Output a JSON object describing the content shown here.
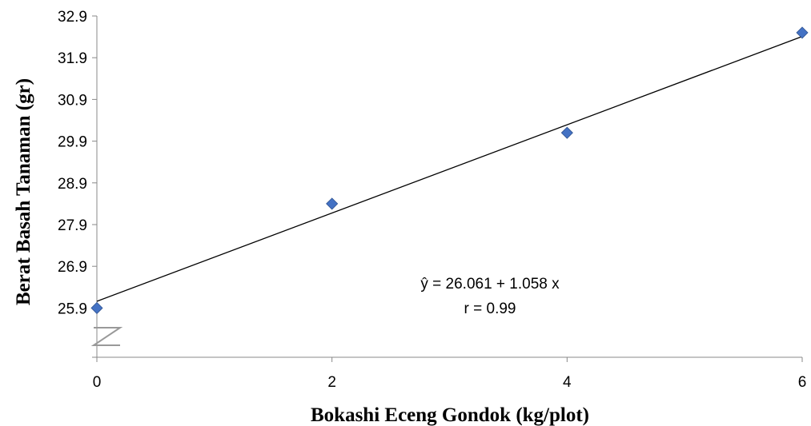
{
  "chart_data": {
    "type": "scatter",
    "xlabel": "Bokashi Eceng Gondok (kg/plot)",
    "ylabel": "Berat Basah Tanaman (gr)",
    "x_ticks": [
      "0",
      "2",
      "4",
      "6"
    ],
    "y_ticks": [
      "25.9",
      "26.9",
      "27.9",
      "28.9",
      "29.9",
      "30.9",
      "31.9",
      "32.9"
    ],
    "xlim": [
      0,
      6
    ],
    "ylim": [
      25.9,
      32.9
    ],
    "y_axis_break": true,
    "grid": false,
    "series": [
      {
        "marker": "diamond",
        "color": "#4472C4",
        "points": [
          {
            "x": 0,
            "y": 25.9
          },
          {
            "x": 2,
            "y": 28.4
          },
          {
            "x": 4,
            "y": 30.1
          },
          {
            "x": 6,
            "y": 32.5
          }
        ]
      }
    ],
    "trendline": {
      "intercept": 26.061,
      "slope": 1.058,
      "color": "#000000"
    },
    "annotations": [
      "ŷ = 26.061 + 1.058 x",
      "r = 0.99"
    ]
  }
}
